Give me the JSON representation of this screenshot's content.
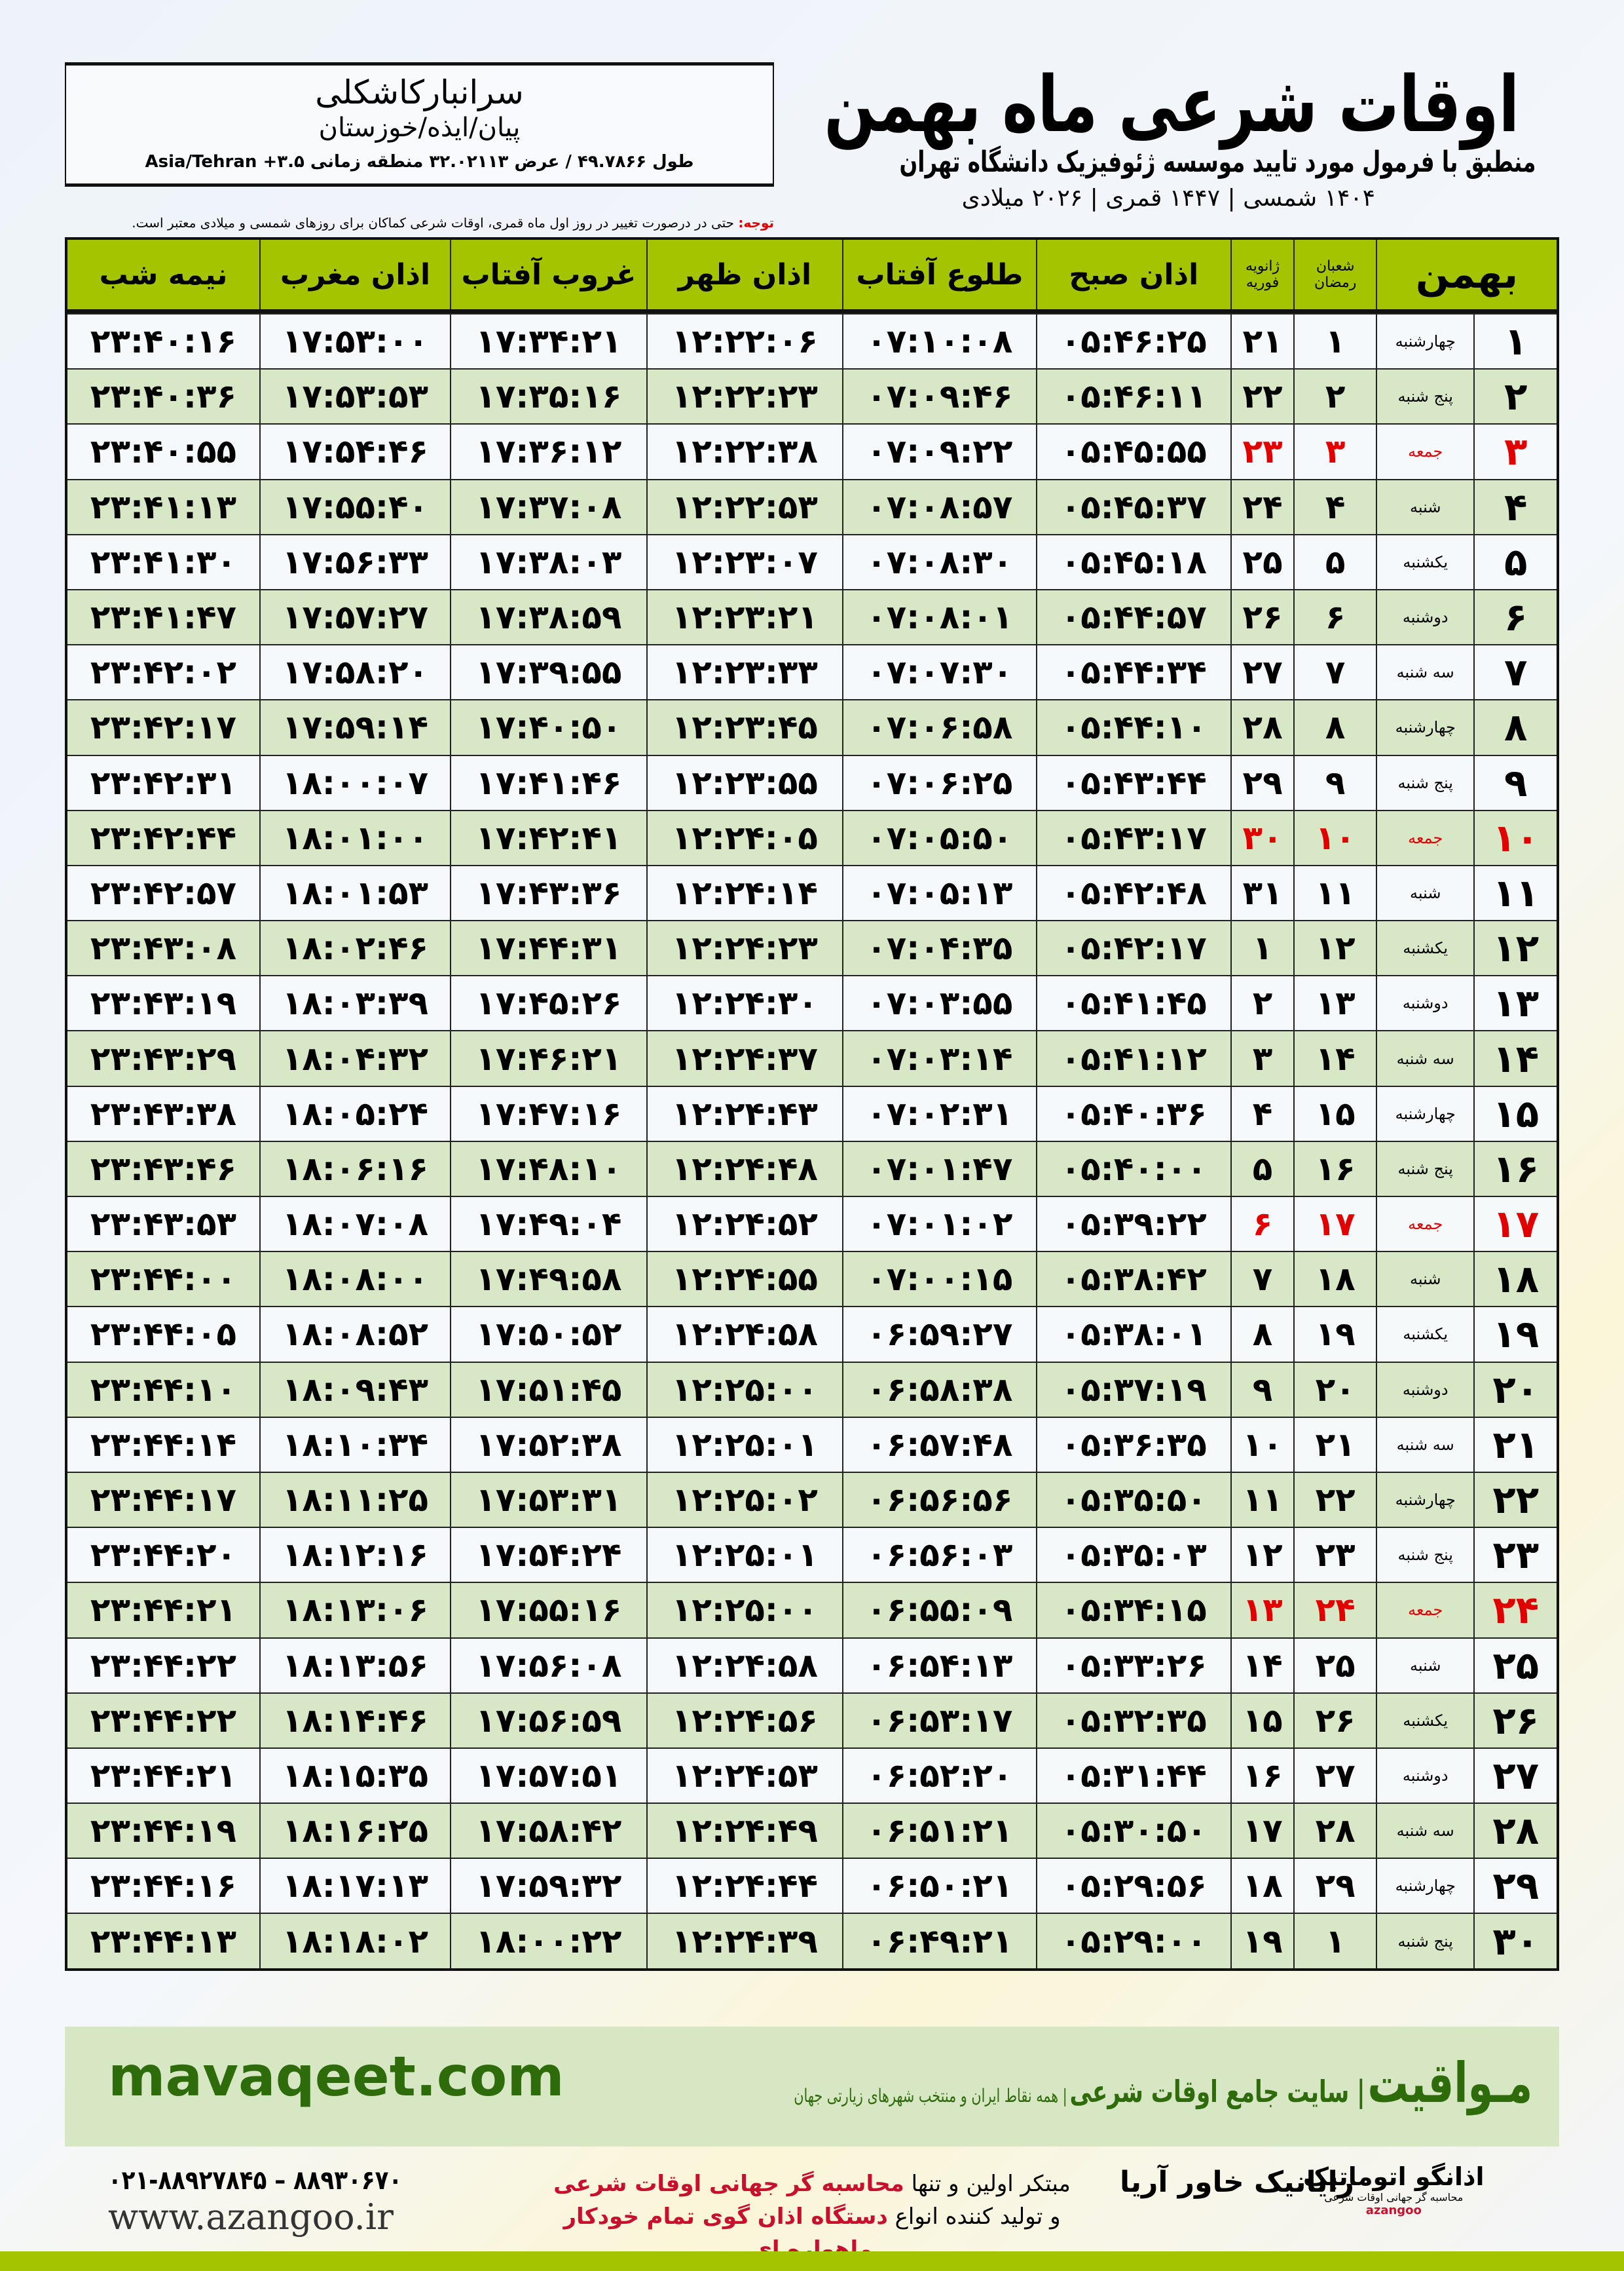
{
  "header": {
    "title": "اوقات شرعی ماه بهمن",
    "subtitle": "منطبق با فرمول مورد تایید موسسه ژئوفیزیک دانشگاه تهران",
    "dates": "۱۴۰۴ شمسی | ۱۴۴۷ قمری | ۲۰۲۶ میلادی"
  },
  "location": {
    "name": "سرانبارکاشکلی",
    "path": "پیان/ایذه/خوزستان",
    "coords": "طول ۴۹.۷۸۶۶ / عرض ۳۲.۰۲۱۱۳ منطقه زمانی ۳.۵+ Asia/Tehran"
  },
  "note": {
    "label": "توجه:",
    "text": " حتی در درصورت تغییر در روز اول ماه قمری، اوقات شرعی کماکان برای روزهای شمسی و میلادی معتبر است."
  },
  "table": {
    "headers": {
      "midnight": "نیمه شب",
      "maghrib": "اذان مغرب",
      "sunset": "غروب آفتاب",
      "dhuhr": "اذان ظهر",
      "sunrise": "طلوع آفتاب",
      "fajr": "اذان صبح",
      "greg1": "ژانویه",
      "greg2": "فوریه",
      "hijri1": "شعبان",
      "hijri2": "رمضان",
      "month": "بهمن"
    },
    "holiday_color": "#e00000",
    "rows": [
      [
        "۱",
        "چهارشنبه",
        "۱",
        "۲۱",
        "۰۵:۴۶:۲۵",
        "۰۷:۱۰:۰۸",
        "۱۲:۲۲:۰۶",
        "۱۷:۳۴:۲۱",
        "۱۷:۵۳:۰۰",
        "۲۳:۴۰:۱۶"
      ],
      [
        "۲",
        "پنج شنبه",
        "۲",
        "۲۲",
        "۰۵:۴۶:۱۱",
        "۰۷:۰۹:۴۶",
        "۱۲:۲۲:۲۳",
        "۱۷:۳۵:۱۶",
        "۱۷:۵۳:۵۳",
        "۲۳:۴۰:۳۶"
      ],
      [
        "۳",
        "جمعه",
        "۳",
        "۲۳",
        "۰۵:۴۵:۵۵",
        "۰۷:۰۹:۲۲",
        "۱۲:۲۲:۳۸",
        "۱۷:۳۶:۱۲",
        "۱۷:۵۴:۴۶",
        "۲۳:۴۰:۵۵"
      ],
      [
        "۴",
        "شنبه",
        "۴",
        "۲۴",
        "۰۵:۴۵:۳۷",
        "۰۷:۰۸:۵۷",
        "۱۲:۲۲:۵۳",
        "۱۷:۳۷:۰۸",
        "۱۷:۵۵:۴۰",
        "۲۳:۴۱:۱۳"
      ],
      [
        "۵",
        "یکشنبه",
        "۵",
        "۲۵",
        "۰۵:۴۵:۱۸",
        "۰۷:۰۸:۳۰",
        "۱۲:۲۳:۰۷",
        "۱۷:۳۸:۰۳",
        "۱۷:۵۶:۳۳",
        "۲۳:۴۱:۳۰"
      ],
      [
        "۶",
        "دوشنبه",
        "۶",
        "۲۶",
        "۰۵:۴۴:۵۷",
        "۰۷:۰۸:۰۱",
        "۱۲:۲۳:۲۱",
        "۱۷:۳۸:۵۹",
        "۱۷:۵۷:۲۷",
        "۲۳:۴۱:۴۷"
      ],
      [
        "۷",
        "سه شنبه",
        "۷",
        "۲۷",
        "۰۵:۴۴:۳۴",
        "۰۷:۰۷:۳۰",
        "۱۲:۲۳:۳۳",
        "۱۷:۳۹:۵۵",
        "۱۷:۵۸:۲۰",
        "۲۳:۴۲:۰۲"
      ],
      [
        "۸",
        "چهارشنبه",
        "۸",
        "۲۸",
        "۰۵:۴۴:۱۰",
        "۰۷:۰۶:۵۸",
        "۱۲:۲۳:۴۵",
        "۱۷:۴۰:۵۰",
        "۱۷:۵۹:۱۴",
        "۲۳:۴۲:۱۷"
      ],
      [
        "۹",
        "پنج شنبه",
        "۹",
        "۲۹",
        "۰۵:۴۳:۴۴",
        "۰۷:۰۶:۲۵",
        "۱۲:۲۳:۵۵",
        "۱۷:۴۱:۴۶",
        "۱۸:۰۰:۰۷",
        "۲۳:۴۲:۳۱"
      ],
      [
        "۱۰",
        "جمعه",
        "۱۰",
        "۳۰",
        "۰۵:۴۳:۱۷",
        "۰۷:۰۵:۵۰",
        "۱۲:۲۴:۰۵",
        "۱۷:۴۲:۴۱",
        "۱۸:۰۱:۰۰",
        "۲۳:۴۲:۴۴"
      ],
      [
        "۱۱",
        "شنبه",
        "۱۱",
        "۳۱",
        "۰۵:۴۲:۴۸",
        "۰۷:۰۵:۱۳",
        "۱۲:۲۴:۱۴",
        "۱۷:۴۳:۳۶",
        "۱۸:۰۱:۵۳",
        "۲۳:۴۲:۵۷"
      ],
      [
        "۱۲",
        "یکشنبه",
        "۱۲",
        "۱",
        "۰۵:۴۲:۱۷",
        "۰۷:۰۴:۳۵",
        "۱۲:۲۴:۲۳",
        "۱۷:۴۴:۳۱",
        "۱۸:۰۲:۴۶",
        "۲۳:۴۳:۰۸"
      ],
      [
        "۱۳",
        "دوشنبه",
        "۱۳",
        "۲",
        "۰۵:۴۱:۴۵",
        "۰۷:۰۳:۵۵",
        "۱۲:۲۴:۳۰",
        "۱۷:۴۵:۲۶",
        "۱۸:۰۳:۳۹",
        "۲۳:۴۳:۱۹"
      ],
      [
        "۱۴",
        "سه شنبه",
        "۱۴",
        "۳",
        "۰۵:۴۱:۱۲",
        "۰۷:۰۳:۱۴",
        "۱۲:۲۴:۳۷",
        "۱۷:۴۶:۲۱",
        "۱۸:۰۴:۳۲",
        "۲۳:۴۳:۲۹"
      ],
      [
        "۱۵",
        "چهارشنبه",
        "۱۵",
        "۴",
        "۰۵:۴۰:۳۶",
        "۰۷:۰۲:۳۱",
        "۱۲:۲۴:۴۳",
        "۱۷:۴۷:۱۶",
        "۱۸:۰۵:۲۴",
        "۲۳:۴۳:۳۸"
      ],
      [
        "۱۶",
        "پنج شنبه",
        "۱۶",
        "۵",
        "۰۵:۴۰:۰۰",
        "۰۷:۰۱:۴۷",
        "۱۲:۲۴:۴۸",
        "۱۷:۴۸:۱۰",
        "۱۸:۰۶:۱۶",
        "۲۳:۴۳:۴۶"
      ],
      [
        "۱۷",
        "جمعه",
        "۱۷",
        "۶",
        "۰۵:۳۹:۲۲",
        "۰۷:۰۱:۰۲",
        "۱۲:۲۴:۵۲",
        "۱۷:۴۹:۰۴",
        "۱۸:۰۷:۰۸",
        "۲۳:۴۳:۵۳"
      ],
      [
        "۱۸",
        "شنبه",
        "۱۸",
        "۷",
        "۰۵:۳۸:۴۲",
        "۰۷:۰۰:۱۵",
        "۱۲:۲۴:۵۵",
        "۱۷:۴۹:۵۸",
        "۱۸:۰۸:۰۰",
        "۲۳:۴۴:۰۰"
      ],
      [
        "۱۹",
        "یکشنبه",
        "۱۹",
        "۸",
        "۰۵:۳۸:۰۱",
        "۰۶:۵۹:۲۷",
        "۱۲:۲۴:۵۸",
        "۱۷:۵۰:۵۲",
        "۱۸:۰۸:۵۲",
        "۲۳:۴۴:۰۵"
      ],
      [
        "۲۰",
        "دوشنبه",
        "۲۰",
        "۹",
        "۰۵:۳۷:۱۹",
        "۰۶:۵۸:۳۸",
        "۱۲:۲۵:۰۰",
        "۱۷:۵۱:۴۵",
        "۱۸:۰۹:۴۳",
        "۲۳:۴۴:۱۰"
      ],
      [
        "۲۱",
        "سه شنبه",
        "۲۱",
        "۱۰",
        "۰۵:۳۶:۳۵",
        "۰۶:۵۷:۴۸",
        "۱۲:۲۵:۰۱",
        "۱۷:۵۲:۳۸",
        "۱۸:۱۰:۳۴",
        "۲۳:۴۴:۱۴"
      ],
      [
        "۲۲",
        "چهارشنبه",
        "۲۲",
        "۱۱",
        "۰۵:۳۵:۵۰",
        "۰۶:۵۶:۵۶",
        "۱۲:۲۵:۰۲",
        "۱۷:۵۳:۳۱",
        "۱۸:۱۱:۲۵",
        "۲۳:۴۴:۱۷"
      ],
      [
        "۲۳",
        "پنج شنبه",
        "۲۳",
        "۱۲",
        "۰۵:۳۵:۰۳",
        "۰۶:۵۶:۰۳",
        "۱۲:۲۵:۰۱",
        "۱۷:۵۴:۲۴",
        "۱۸:۱۲:۱۶",
        "۲۳:۴۴:۲۰"
      ],
      [
        "۲۴",
        "جمعه",
        "۲۴",
        "۱۳",
        "۰۵:۳۴:۱۵",
        "۰۶:۵۵:۰۹",
        "۱۲:۲۵:۰۰",
        "۱۷:۵۵:۱۶",
        "۱۸:۱۳:۰۶",
        "۲۳:۴۴:۲۱"
      ],
      [
        "۲۵",
        "شنبه",
        "۲۵",
        "۱۴",
        "۰۵:۳۳:۲۶",
        "۰۶:۵۴:۱۳",
        "۱۲:۲۴:۵۸",
        "۱۷:۵۶:۰۸",
        "۱۸:۱۳:۵۶",
        "۲۳:۴۴:۲۲"
      ],
      [
        "۲۶",
        "یکشنبه",
        "۲۶",
        "۱۵",
        "۰۵:۳۲:۳۵",
        "۰۶:۵۳:۱۷",
        "۱۲:۲۴:۵۶",
        "۱۷:۵۶:۵۹",
        "۱۸:۱۴:۴۶",
        "۲۳:۴۴:۲۲"
      ],
      [
        "۲۷",
        "دوشنبه",
        "۲۷",
        "۱۶",
        "۰۵:۳۱:۴۴",
        "۰۶:۵۲:۲۰",
        "۱۲:۲۴:۵۳",
        "۱۷:۵۷:۵۱",
        "۱۸:۱۵:۳۵",
        "۲۳:۴۴:۲۱"
      ],
      [
        "۲۸",
        "سه شنبه",
        "۲۸",
        "۱۷",
        "۰۵:۳۰:۵۰",
        "۰۶:۵۱:۲۱",
        "۱۲:۲۴:۴۹",
        "۱۷:۵۸:۴۲",
        "۱۸:۱۶:۲۵",
        "۲۳:۴۴:۱۹"
      ],
      [
        "۲۹",
        "چهارشنبه",
        "۲۹",
        "۱۸",
        "۰۵:۲۹:۵۶",
        "۰۶:۵۰:۲۱",
        "۱۲:۲۴:۴۴",
        "۱۷:۵۹:۳۲",
        "۱۸:۱۷:۱۳",
        "۲۳:۴۴:۱۶"
      ],
      [
        "۳۰",
        "پنج شنبه",
        "۱",
        "۱۹",
        "۰۵:۲۹:۰۰",
        "۰۶:۴۹:۲۱",
        "۱۲:۲۴:۳۹",
        "۱۸:۰۰:۲۲",
        "۱۸:۱۸:۰۲",
        "۲۳:۴۴:۱۳"
      ]
    ]
  },
  "footer": {
    "site": "mavaqeet.com",
    "brand": "مـواقیت",
    "slogan_main": "| سایت جامع اوقات شرعی",
    "slogan_sub": "| همه نقاط ایران و منتخب شهرهای زیارتی جهان",
    "ad_line1_a": "مبتکر اولین و تنها ",
    "ad_line1_b": "محاسبه گر جهانی اوقات شرعی",
    "ad_line2_a": "و تولید کننده انواع ",
    "ad_line2_b": "دستگاه اذان گوی تمام خودکار ماهواره ای",
    "phone": "۰۲۱-۸۸۹۲۷۸۴۵ – ۸۸۹۳۰۶۷۰",
    "web": "www.azangoo.ir",
    "logo_rayanik": "رایانیک خاور آریا",
    "logo_azangoo": "اذانگو اتوماتیک",
    "logo_azangoo_sub": "محاسبه گر جهانی اوقات شرعی",
    "logo_azangoo_en": "azangoo",
    "accent": "#a4c400",
    "brand_green": "#2e6b0a"
  }
}
